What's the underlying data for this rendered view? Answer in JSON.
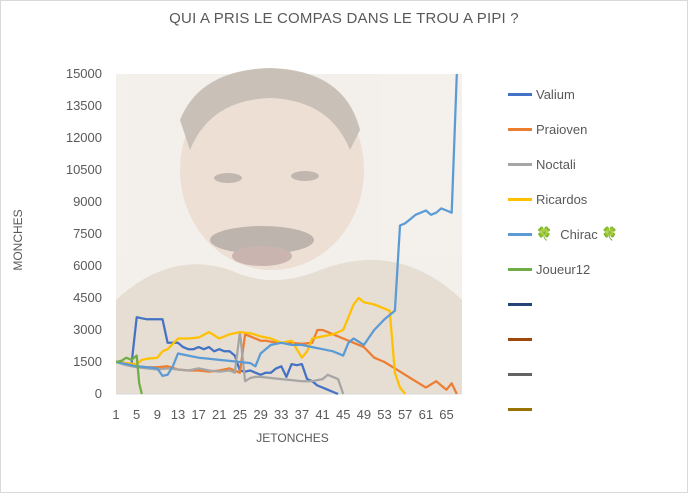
{
  "chart_data": {
    "type": "line",
    "title": "QUI A PRIS LE COMPAS DANS LE TROU A PIPI ?",
    "xlabel": "JETONCHES",
    "ylabel": "MONCHES",
    "ylim": [
      0,
      15000
    ],
    "yticks": [
      "15000",
      "13500",
      "12000",
      "10500",
      "9000",
      "7500",
      "6000",
      "4500",
      "3000",
      "1500",
      "0"
    ],
    "xticks": [
      "1",
      "5",
      "9",
      "13",
      "17",
      "21",
      "25",
      "29",
      "33",
      "37",
      "41",
      "45",
      "49",
      "53",
      "57",
      "61",
      "65"
    ],
    "xlim": [
      1,
      68
    ],
    "grid": false,
    "legend_position": "right",
    "series": [
      {
        "name": "Valium",
        "color": "#4472c4",
        "x": [
          1,
          3,
          4,
          5,
          6,
          7,
          8,
          9,
          10,
          11,
          12,
          13,
          14,
          15,
          16,
          17,
          18,
          19,
          20,
          21,
          22,
          23,
          24,
          25,
          26,
          27,
          28,
          29,
          30,
          31,
          32,
          33,
          34,
          35,
          36,
          37,
          38,
          39,
          40,
          41,
          42,
          43,
          44
        ],
        "y": [
          1500,
          1450,
          1400,
          3600,
          3550,
          3500,
          3500,
          3500,
          3500,
          2400,
          2400,
          2400,
          2200,
          2100,
          2100,
          2200,
          2100,
          2200,
          2000,
          2100,
          2000,
          2000,
          1800,
          1100,
          1050,
          1100,
          1000,
          900,
          1000,
          1000,
          1200,
          1300,
          800,
          1400,
          1350,
          1400,
          700,
          600,
          400,
          300,
          200,
          100,
          0
        ]
      },
      {
        "name": "Praioven",
        "color": "#ed7d31",
        "x": [
          1,
          3,
          5,
          7,
          9,
          11,
          13,
          15,
          17,
          19,
          21,
          23,
          25,
          26,
          27,
          28,
          29,
          30,
          31,
          33,
          35,
          37,
          39,
          40,
          41,
          42,
          43,
          45,
          47,
          49,
          51,
          53,
          55,
          57,
          59,
          61,
          63,
          64,
          65,
          66,
          67
        ],
        "y": [
          1500,
          1400,
          1300,
          1250,
          1250,
          1300,
          1150,
          1100,
          1100,
          1050,
          1100,
          1200,
          1000,
          2800,
          2700,
          2600,
          2500,
          2500,
          2450,
          2400,
          2400,
          2350,
          2400,
          3000,
          3000,
          2900,
          2800,
          2600,
          2400,
          2200,
          1700,
          1500,
          1200,
          900,
          600,
          300,
          600,
          400,
          200,
          500,
          0
        ]
      },
      {
        "name": "Noctali",
        "color": "#a5a5a5",
        "x": [
          1,
          3,
          5,
          7,
          9,
          11,
          13,
          15,
          17,
          19,
          21,
          23,
          24,
          25,
          26,
          27,
          28,
          29,
          31,
          33,
          35,
          37,
          39,
          41,
          42,
          43,
          44,
          45
        ],
        "y": [
          1500,
          1350,
          1250,
          1200,
          1150,
          1200,
          1150,
          1100,
          1200,
          1100,
          1050,
          1100,
          1000,
          2900,
          600,
          750,
          800,
          800,
          750,
          700,
          650,
          600,
          600,
          700,
          900,
          800,
          700,
          0
        ]
      },
      {
        "name": "Ricardos",
        "color": "#ffc000",
        "x": [
          1,
          3,
          5,
          6,
          7,
          9,
          10,
          11,
          13,
          15,
          17,
          19,
          21,
          23,
          25,
          27,
          29,
          31,
          33,
          35,
          37,
          38,
          39,
          41,
          43,
          45,
          46,
          47,
          48,
          49,
          51,
          53,
          54,
          55,
          56,
          57
        ],
        "y": [
          1500,
          1450,
          1400,
          1600,
          1650,
          1700,
          2000,
          2100,
          2600,
          2600,
          2650,
          2900,
          2600,
          2800,
          2900,
          2850,
          2700,
          2600,
          2400,
          2500,
          1700,
          2000,
          2600,
          2700,
          2800,
          3000,
          3600,
          4200,
          4500,
          4300,
          4200,
          4000,
          3900,
          1000,
          300,
          0
        ]
      },
      {
        "name": "Chirac",
        "color": "#5b9bd5",
        "x": [
          1,
          3,
          5,
          7,
          9,
          10,
          11,
          12,
          13,
          15,
          17,
          19,
          21,
          23,
          25,
          27,
          28,
          29,
          31,
          33,
          35,
          37,
          39,
          41,
          43,
          45,
          46,
          47,
          49,
          51,
          53,
          55,
          56,
          57,
          58,
          59,
          60,
          61,
          62,
          63,
          64,
          65,
          66,
          67
        ],
        "y": [
          1500,
          1400,
          1300,
          1250,
          1200,
          850,
          900,
          1300,
          1900,
          1800,
          1700,
          1650,
          1600,
          1550,
          1500,
          1450,
          1300,
          1900,
          2300,
          2400,
          2300,
          2300,
          2200,
          2100,
          2000,
          1800,
          2400,
          2600,
          2300,
          3000,
          3500,
          3900,
          7900,
          8000,
          8200,
          8400,
          8500,
          8600,
          8400,
          8500,
          8700,
          8600,
          8500,
          15000
        ]
      },
      {
        "name": "Joueur12",
        "color": "#70ad47",
        "x": [
          1,
          2,
          3,
          4,
          5,
          5.5,
          6
        ],
        "y": [
          1500,
          1550,
          1700,
          1600,
          1800,
          500,
          0
        ]
      },
      {
        "name": "",
        "color": "#264478",
        "x": [],
        "y": []
      },
      {
        "name": "",
        "color": "#9e480e",
        "x": [],
        "y": []
      },
      {
        "name": "",
        "color": "#636363",
        "x": [],
        "y": []
      },
      {
        "name": "",
        "color": "#997300",
        "x": [],
        "y": []
      }
    ]
  },
  "legend": {
    "labels": [
      "Valium",
      "Praioven",
      "Noctali",
      "Ricardos",
      "Chirac",
      "Joueur12",
      "",
      "",
      "",
      ""
    ],
    "clover": "🍀"
  },
  "background_image": {
    "description_icon": "laughing-man-photo"
  }
}
